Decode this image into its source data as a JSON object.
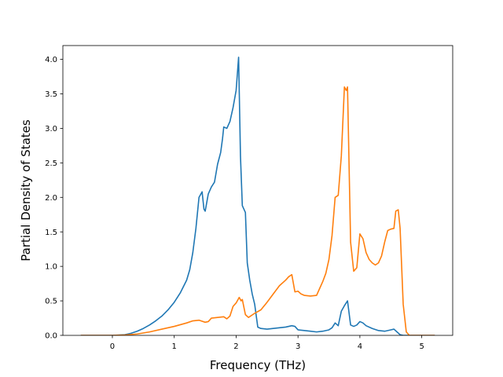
{
  "chart_data": {
    "type": "line",
    "title": "",
    "xlabel": "Frequency (THz)",
    "ylabel": "Partial Density of States",
    "xlim": [
      -0.8,
      5.5
    ],
    "ylim": [
      0,
      4.2
    ],
    "xticks": [
      0,
      1,
      2,
      3,
      4,
      5
    ],
    "xtick_labels": [
      "0",
      "1",
      "2",
      "3",
      "4",
      "5"
    ],
    "yticks": [
      0,
      0.5,
      1.0,
      1.5,
      2.0,
      2.5,
      3.0,
      3.5,
      4.0
    ],
    "ytick_labels": [
      "0.0",
      "0.5",
      "1.0",
      "1.5",
      "2.0",
      "2.5",
      "3.0",
      "3.5",
      "4.0"
    ],
    "grid": false,
    "legend": "none",
    "series": [
      {
        "color": "#1f77b4",
        "x": [
          -0.5,
          0.0,
          0.2,
          0.3,
          0.4,
          0.5,
          0.6,
          0.7,
          0.8,
          0.9,
          1.0,
          1.1,
          1.2,
          1.25,
          1.3,
          1.35,
          1.4,
          1.45,
          1.48,
          1.5,
          1.55,
          1.6,
          1.65,
          1.7,
          1.75,
          1.78,
          1.8,
          1.85,
          1.9,
          1.95,
          2.0,
          2.04,
          2.07,
          2.1,
          2.15,
          2.18,
          2.22,
          2.26,
          2.3,
          2.35,
          2.4,
          2.5,
          2.6,
          2.7,
          2.8,
          2.9,
          2.95,
          3.0,
          3.1,
          3.2,
          3.3,
          3.4,
          3.5,
          3.55,
          3.6,
          3.65,
          3.7,
          3.75,
          3.8,
          3.85,
          3.9,
          3.95,
          4.0,
          4.05,
          4.1,
          4.2,
          4.3,
          4.4,
          4.5,
          4.55,
          4.6,
          4.65,
          4.7,
          4.75,
          4.8,
          5.2
        ],
        "y": [
          0,
          0,
          0.01,
          0.03,
          0.06,
          0.1,
          0.15,
          0.21,
          0.28,
          0.37,
          0.48,
          0.62,
          0.8,
          0.95,
          1.2,
          1.55,
          2.0,
          2.08,
          1.83,
          1.8,
          2.05,
          2.15,
          2.22,
          2.48,
          2.65,
          2.85,
          3.02,
          3.0,
          3.1,
          3.3,
          3.55,
          4.03,
          2.6,
          1.88,
          1.78,
          1.05,
          0.8,
          0.6,
          0.45,
          0.12,
          0.1,
          0.09,
          0.1,
          0.11,
          0.12,
          0.14,
          0.13,
          0.08,
          0.07,
          0.06,
          0.05,
          0.06,
          0.08,
          0.11,
          0.18,
          0.14,
          0.35,
          0.43,
          0.5,
          0.15,
          0.13,
          0.15,
          0.2,
          0.18,
          0.14,
          0.1,
          0.07,
          0.06,
          0.08,
          0.09,
          0.05,
          0.01,
          0,
          0,
          0,
          0
        ]
      },
      {
        "color": "#ff7f0e",
        "x": [
          -0.5,
          0.0,
          0.2,
          0.4,
          0.6,
          0.8,
          1.0,
          1.2,
          1.3,
          1.4,
          1.5,
          1.55,
          1.6,
          1.7,
          1.8,
          1.85,
          1.9,
          1.95,
          2.0,
          2.05,
          2.08,
          2.1,
          2.15,
          2.2,
          2.3,
          2.4,
          2.5,
          2.6,
          2.7,
          2.8,
          2.85,
          2.9,
          2.95,
          3.0,
          3.05,
          3.1,
          3.2,
          3.3,
          3.35,
          3.4,
          3.45,
          3.5,
          3.55,
          3.6,
          3.65,
          3.7,
          3.72,
          3.75,
          3.78,
          3.8,
          3.85,
          3.9,
          3.95,
          4.0,
          4.05,
          4.1,
          4.15,
          4.2,
          4.25,
          4.3,
          4.35,
          4.4,
          4.45,
          4.5,
          4.55,
          4.58,
          4.62,
          4.65,
          4.7,
          4.75,
          4.8,
          5.2
        ],
        "y": [
          0,
          0,
          0.005,
          0.02,
          0.05,
          0.09,
          0.13,
          0.18,
          0.21,
          0.22,
          0.19,
          0.2,
          0.25,
          0.26,
          0.27,
          0.24,
          0.28,
          0.42,
          0.47,
          0.55,
          0.5,
          0.52,
          0.3,
          0.26,
          0.32,
          0.37,
          0.48,
          0.6,
          0.72,
          0.8,
          0.85,
          0.88,
          0.63,
          0.64,
          0.6,
          0.58,
          0.57,
          0.58,
          0.68,
          0.78,
          0.9,
          1.1,
          1.45,
          2.0,
          2.03,
          2.6,
          3.0,
          3.6,
          3.55,
          3.6,
          1.35,
          0.93,
          0.98,
          1.47,
          1.4,
          1.2,
          1.1,
          1.05,
          1.02,
          1.05,
          1.15,
          1.35,
          1.52,
          1.54,
          1.55,
          1.8,
          1.82,
          1.55,
          0.45,
          0.05,
          0.0,
          0.0
        ]
      }
    ]
  }
}
